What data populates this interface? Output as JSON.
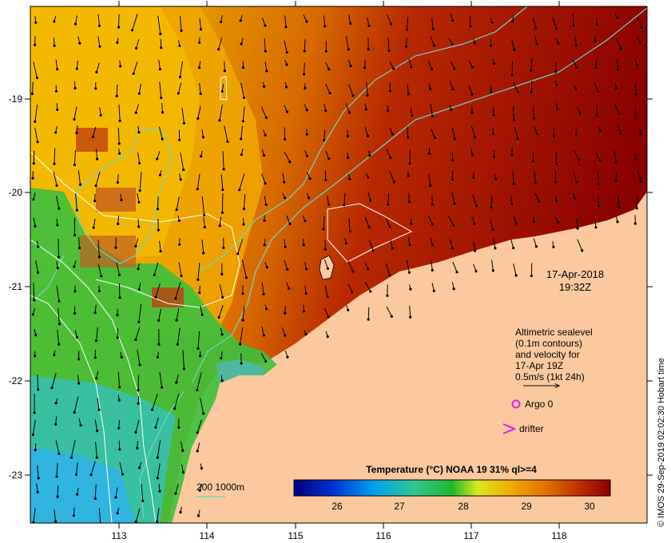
{
  "map": {
    "x_ticks": [
      "113",
      "114",
      "115",
      "116",
      "117",
      "118"
    ],
    "y_ticks": [
      "-19",
      "-20",
      "-21",
      "-22",
      "-23"
    ],
    "date": "17-Apr-2018",
    "time": "19:32Z",
    "altimetry_lines": [
      "Altimetric sealevel",
      "(0.1m contours)",
      "and velocity for",
      "17-Apr 19Z",
      "0.5m/s (1kt 24h)"
    ],
    "argo_label": "Argo 0",
    "drifter_label": "drifter",
    "isobath_label": "200  1000m",
    "colorbar_title": "Temperature (°C) NOAA 19 31% ql>=4",
    "colorbar_ticks": [
      "26",
      "27",
      "28",
      "29",
      "30"
    ],
    "credit": "© IMOS 29-Sep-2019 02:02:30 Hobart time",
    "colors": {
      "land": "#fbc99d",
      "isobath": "#6fd6c8",
      "sealevel_contour": "#ffffff",
      "argo": "#e020e0",
      "drifter": "#e020e0"
    }
  }
}
